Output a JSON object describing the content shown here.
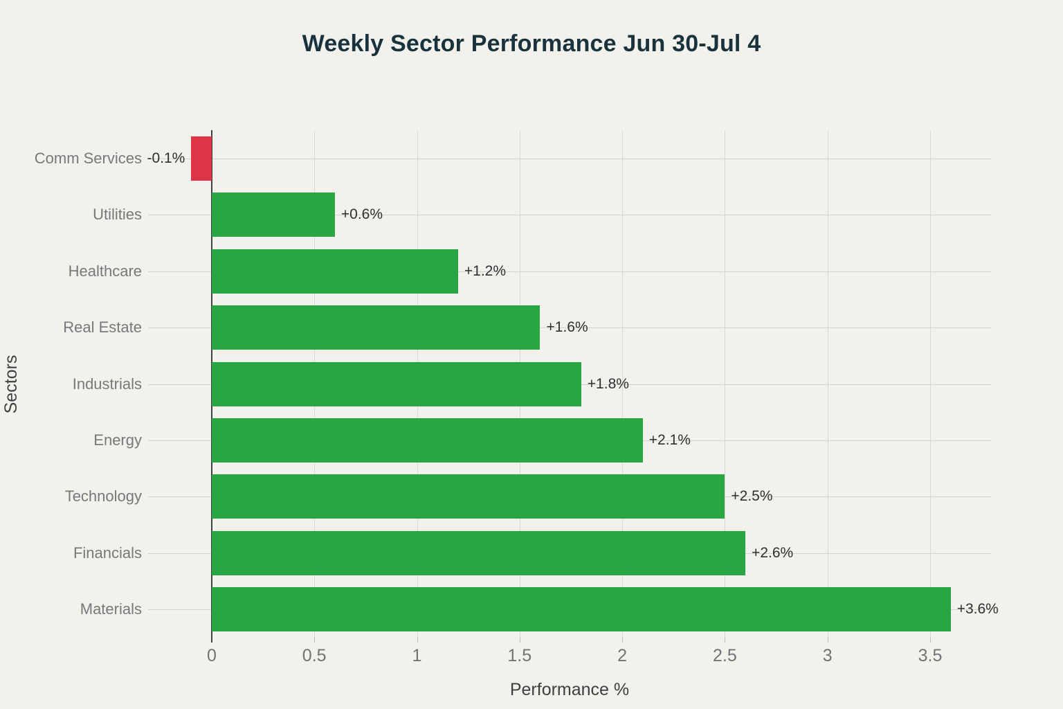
{
  "title": "Weekly Sector Performance Jun 30-Jul 4",
  "colors": {
    "background": "#f2f1eb",
    "positive_bar": "#2aa544",
    "negative_bar": "#df3347",
    "title_text": "#18323e",
    "category_label_text": "#75797d",
    "tick_label_text": "#6f7478",
    "axis_title_text": "#3c4145",
    "value_label_text": "#2c3034",
    "gridline": "#d9d9d1",
    "zero_line": "#3b4043"
  },
  "chart_data": {
    "type": "bar",
    "orientation": "horizontal",
    "title": "Weekly Sector Performance Jun 30-Jul 4",
    "xlabel": "Performance %",
    "ylabel": "Sectors",
    "categories": [
      "Comm Services",
      "Utilities",
      "Healthcare",
      "Real Estate",
      "Industrials",
      "Energy",
      "Technology",
      "Financials",
      "Materials"
    ],
    "values": [
      -0.1,
      0.6,
      1.2,
      1.6,
      1.8,
      2.1,
      2.5,
      2.6,
      3.6
    ],
    "bar_labels": [
      "-0.1%",
      "+0.6%",
      "+1.2%",
      "+1.6%",
      "+1.8%",
      "+2.1%",
      "+2.5%",
      "+2.6%",
      "+3.6%"
    ],
    "x_ticks": [
      0,
      0.5,
      1,
      1.5,
      2,
      2.5,
      3,
      3.5
    ],
    "x_tick_labels": [
      "0",
      "0.5",
      "1",
      "1.5",
      "2",
      "2.5",
      "3",
      "3.5"
    ],
    "xlim": [
      -0.31,
      3.8
    ],
    "grid": true,
    "legend": "none",
    "category_order_note": "listed top to bottom as rendered"
  }
}
